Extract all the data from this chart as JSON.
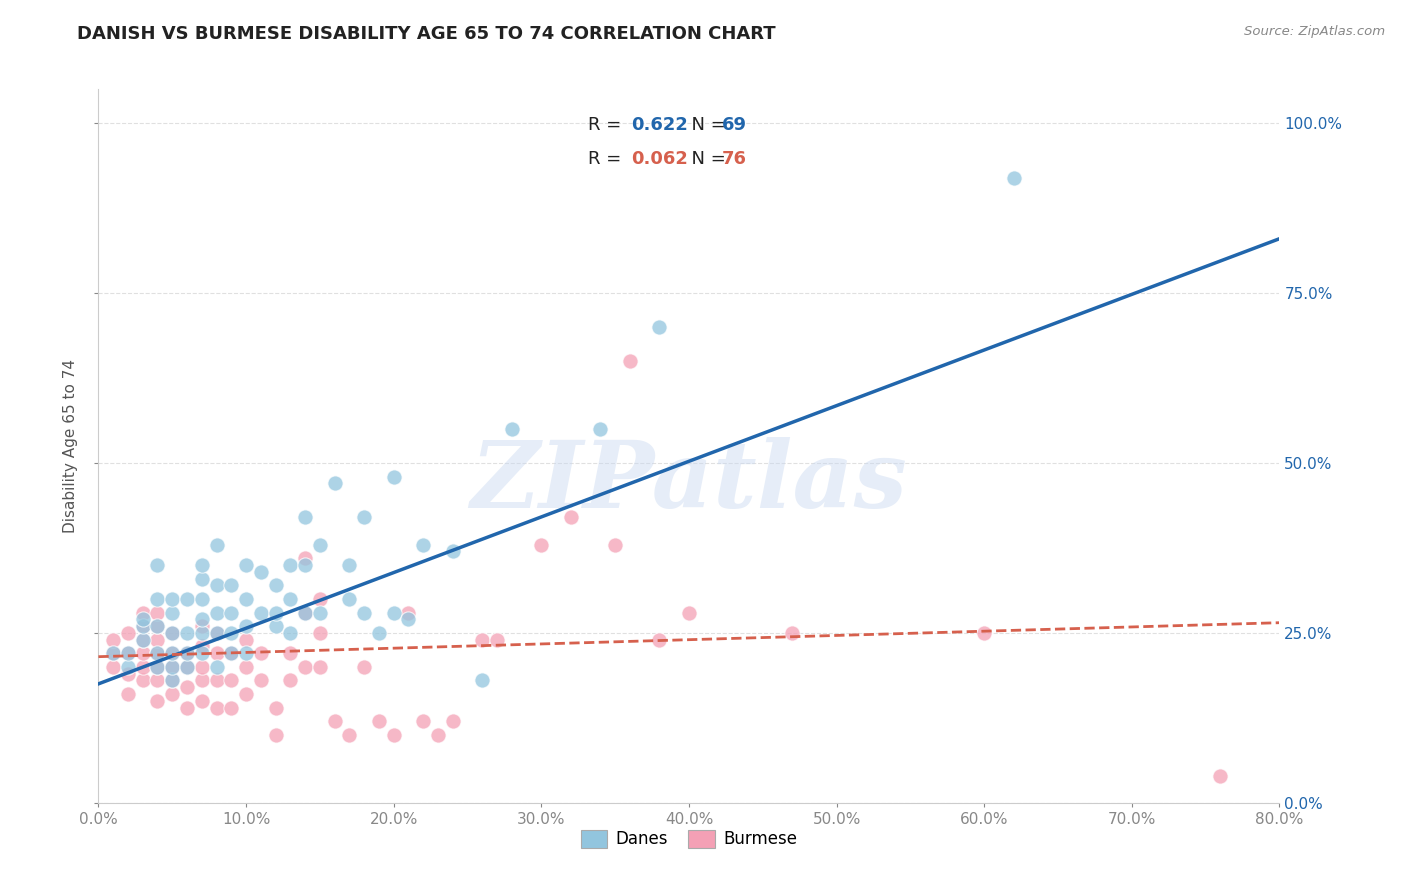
{
  "title": "DANISH VS BURMESE DISABILITY AGE 65 TO 74 CORRELATION CHART",
  "source": "Source: ZipAtlas.com",
  "ylabel": "Disability Age 65 to 74",
  "xlim": [
    0.0,
    0.8
  ],
  "ylim": [
    0.0,
    1.05
  ],
  "danes_R": "0.622",
  "danes_N": "69",
  "burmese_R": "0.062",
  "burmese_N": "76",
  "danes_color": "#92c5de",
  "burmese_color": "#f4a0b5",
  "danes_line_color": "#2166ac",
  "burmese_line_color": "#d6604d",
  "danes_scatter_x": [
    0.01,
    0.02,
    0.02,
    0.03,
    0.03,
    0.03,
    0.04,
    0.04,
    0.04,
    0.04,
    0.04,
    0.05,
    0.05,
    0.05,
    0.05,
    0.05,
    0.05,
    0.06,
    0.06,
    0.06,
    0.06,
    0.07,
    0.07,
    0.07,
    0.07,
    0.07,
    0.07,
    0.08,
    0.08,
    0.08,
    0.08,
    0.08,
    0.09,
    0.09,
    0.09,
    0.09,
    0.1,
    0.1,
    0.1,
    0.1,
    0.11,
    0.11,
    0.12,
    0.12,
    0.12,
    0.13,
    0.13,
    0.13,
    0.14,
    0.14,
    0.14,
    0.15,
    0.15,
    0.16,
    0.17,
    0.17,
    0.18,
    0.18,
    0.19,
    0.2,
    0.2,
    0.21,
    0.22,
    0.24,
    0.26,
    0.28,
    0.34,
    0.38,
    0.62
  ],
  "danes_scatter_y": [
    0.22,
    0.2,
    0.22,
    0.24,
    0.26,
    0.27,
    0.2,
    0.22,
    0.26,
    0.3,
    0.35,
    0.18,
    0.2,
    0.22,
    0.25,
    0.28,
    0.3,
    0.2,
    0.22,
    0.25,
    0.3,
    0.22,
    0.25,
    0.27,
    0.3,
    0.33,
    0.35,
    0.2,
    0.25,
    0.28,
    0.32,
    0.38,
    0.22,
    0.25,
    0.28,
    0.32,
    0.22,
    0.26,
    0.3,
    0.35,
    0.28,
    0.34,
    0.26,
    0.28,
    0.32,
    0.25,
    0.3,
    0.35,
    0.28,
    0.35,
    0.42,
    0.28,
    0.38,
    0.47,
    0.3,
    0.35,
    0.28,
    0.42,
    0.25,
    0.28,
    0.48,
    0.27,
    0.38,
    0.37,
    0.18,
    0.55,
    0.55,
    0.7,
    0.92
  ],
  "burmese_scatter_x": [
    0.01,
    0.01,
    0.01,
    0.02,
    0.02,
    0.02,
    0.02,
    0.03,
    0.03,
    0.03,
    0.03,
    0.03,
    0.03,
    0.04,
    0.04,
    0.04,
    0.04,
    0.04,
    0.04,
    0.04,
    0.05,
    0.05,
    0.05,
    0.05,
    0.05,
    0.06,
    0.06,
    0.06,
    0.06,
    0.07,
    0.07,
    0.07,
    0.07,
    0.07,
    0.08,
    0.08,
    0.08,
    0.08,
    0.09,
    0.09,
    0.09,
    0.1,
    0.1,
    0.1,
    0.11,
    0.11,
    0.12,
    0.12,
    0.13,
    0.13,
    0.14,
    0.14,
    0.14,
    0.15,
    0.15,
    0.15,
    0.16,
    0.17,
    0.18,
    0.19,
    0.2,
    0.21,
    0.22,
    0.23,
    0.24,
    0.26,
    0.27,
    0.3,
    0.32,
    0.35,
    0.36,
    0.38,
    0.4,
    0.47,
    0.6,
    0.76
  ],
  "burmese_scatter_y": [
    0.2,
    0.22,
    0.24,
    0.16,
    0.19,
    0.22,
    0.25,
    0.18,
    0.2,
    0.22,
    0.24,
    0.26,
    0.28,
    0.15,
    0.18,
    0.2,
    0.22,
    0.24,
    0.26,
    0.28,
    0.16,
    0.18,
    0.2,
    0.22,
    0.25,
    0.14,
    0.17,
    0.2,
    0.22,
    0.15,
    0.18,
    0.2,
    0.23,
    0.26,
    0.14,
    0.18,
    0.22,
    0.25,
    0.14,
    0.18,
    0.22,
    0.16,
    0.2,
    0.24,
    0.18,
    0.22,
    0.1,
    0.14,
    0.18,
    0.22,
    0.2,
    0.28,
    0.36,
    0.2,
    0.25,
    0.3,
    0.12,
    0.1,
    0.2,
    0.12,
    0.1,
    0.28,
    0.12,
    0.1,
    0.12,
    0.24,
    0.24,
    0.38,
    0.42,
    0.38,
    0.65,
    0.24,
    0.28,
    0.25,
    0.25,
    0.04
  ],
  "danes_trend_x": [
    0.0,
    0.8
  ],
  "danes_trend_y": [
    0.175,
    0.83
  ],
  "burmese_trend_x": [
    0.0,
    0.8
  ],
  "burmese_trend_y": [
    0.215,
    0.265
  ],
  "watermark_text": "ZIPatlas",
  "background_color": "#ffffff",
  "grid_color": "#e0e0e0",
  "grid_linestyle": "--",
  "ytick_vals": [
    0.0,
    0.25,
    0.5,
    0.75,
    1.0
  ],
  "ytick_labels_right": [
    "0.0%",
    "25.0%",
    "50.0%",
    "75.0%",
    "100.0%"
  ],
  "xtick_vals": [
    0.0,
    0.1,
    0.2,
    0.3,
    0.4,
    0.5,
    0.6,
    0.7,
    0.8
  ],
  "xtick_labels": [
    "0.0%",
    "10.0%",
    "20.0%",
    "30.0%",
    "40.0%",
    "50.0%",
    "60.0%",
    "70.0%",
    "80.0%"
  ]
}
